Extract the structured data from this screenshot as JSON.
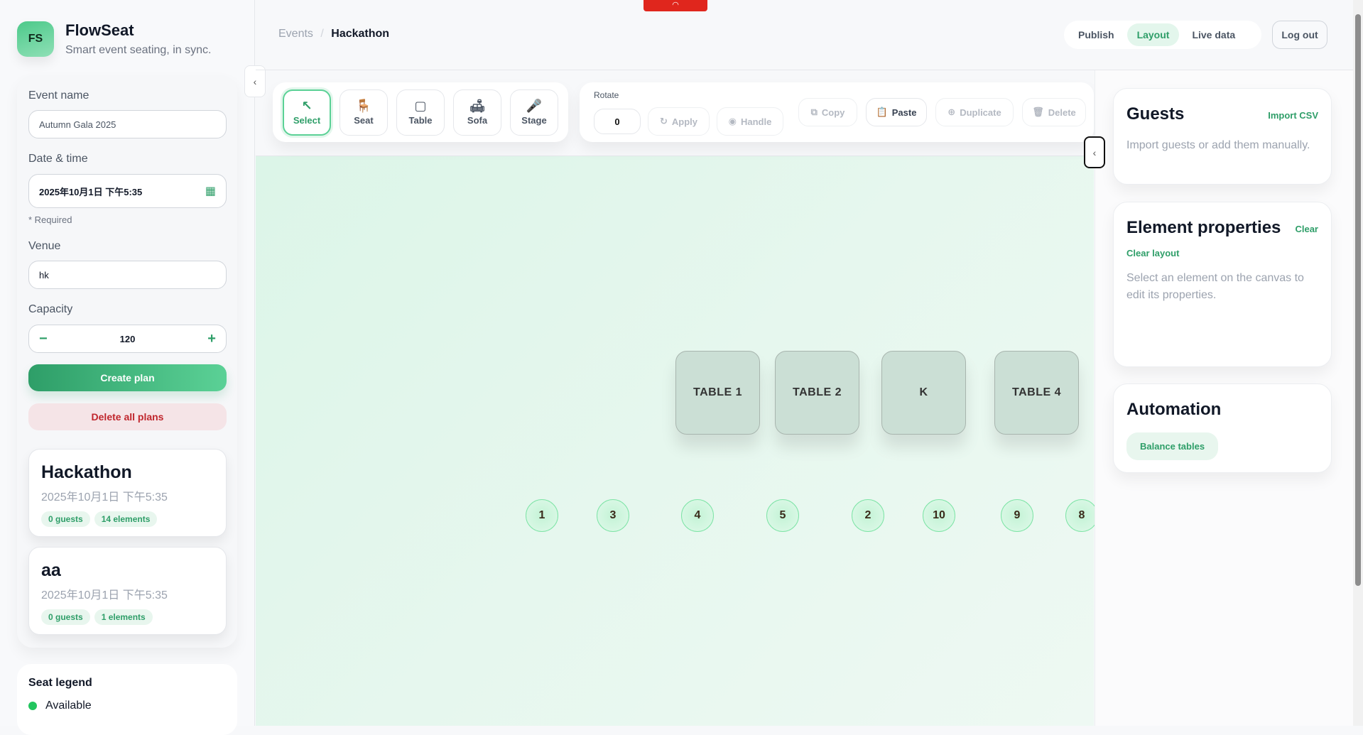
{
  "app": {
    "logo": "FS",
    "name": "FlowSeat",
    "tagline": "Smart event seating, in sync."
  },
  "form": {
    "event_name_label": "Event name",
    "event_name_value": "Autumn Gala 2025",
    "date_label": "Date & time",
    "date_value": "2025年10月1日 下午5:35",
    "required_note": "* Required",
    "venue_label": "Venue",
    "venue_value": "hk",
    "capacity_label": "Capacity",
    "capacity_value": "120",
    "minus": "−",
    "plus": "+",
    "create_label": "Create plan",
    "delete_label": "Delete all plans"
  },
  "plans": [
    {
      "title": "Hackathon",
      "date": "2025年10月1日 下午5:35",
      "guests": "0 guests",
      "elements": "14 elements"
    },
    {
      "title": "aa",
      "date": "2025年10月1日 下午5:35",
      "guests": "0 guests",
      "elements": "1 elements"
    }
  ],
  "legend": {
    "title": "Seat legend",
    "items": [
      {
        "label": "Available",
        "color": "#22c55e"
      }
    ]
  },
  "breadcrumb": {
    "root": "Events",
    "sep": "/",
    "current": "Hackathon"
  },
  "header": {
    "tabs": [
      {
        "label": "Publish",
        "active": false
      },
      {
        "label": "Layout",
        "active": true
      },
      {
        "label": "Live data",
        "active": false
      }
    ],
    "logout": "Log out"
  },
  "tools": [
    {
      "label": "Select",
      "icon": "↖",
      "name": "select",
      "active": true
    },
    {
      "label": "Seat",
      "icon": "🪑",
      "name": "seat"
    },
    {
      "label": "Table",
      "icon": "▢",
      "name": "table"
    },
    {
      "label": "Sofa",
      "icon": "🛋",
      "name": "sofa"
    },
    {
      "label": "Stage",
      "icon": "🎤",
      "name": "stage"
    }
  ],
  "rotate": {
    "label": "Rotate",
    "value": "0",
    "apply": "Apply",
    "handle": "Handle"
  },
  "actions": {
    "copy": "Copy",
    "paste": "Paste",
    "duplicate": "Duplicate",
    "delete": "Delete"
  },
  "canvas": {
    "tables": [
      "TABLE 1",
      "TABLE 2",
      "K",
      "TABLE 4"
    ],
    "seats": [
      "1",
      "3",
      "4",
      "5",
      "2",
      "10",
      "9",
      "8"
    ]
  },
  "guests": {
    "title": "Guests",
    "import": "Import CSV",
    "empty": "Import guests or add them manually."
  },
  "properties": {
    "title": "Element properties",
    "clear": "Clear",
    "clear_layout": "Clear layout",
    "empty": "Select an element on the canvas to edit its properties."
  },
  "automation": {
    "title": "Automation",
    "balance": "Balance tables"
  },
  "colors": {
    "accent": "#2e9e68",
    "danger": "#c0262d"
  }
}
